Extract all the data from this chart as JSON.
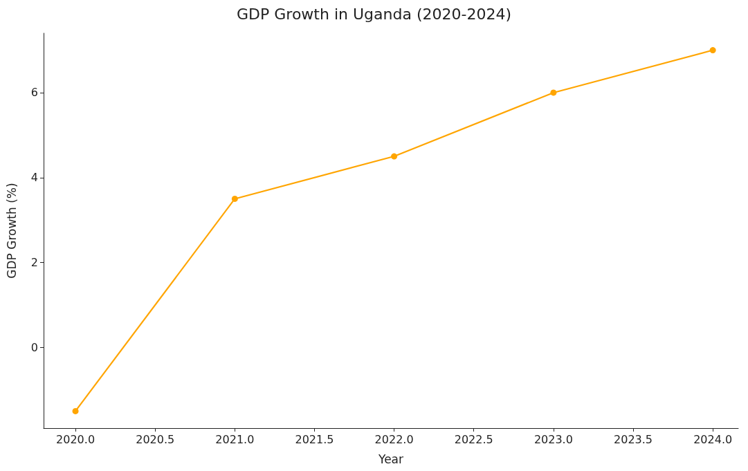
{
  "chart_data": {
    "type": "line",
    "title": "GDP Growth in Uganda (2020-2024)",
    "xlabel": "Year",
    "ylabel": "GDP Growth (%)",
    "x": [
      2020,
      2021,
      2022,
      2023,
      2024
    ],
    "series": [
      {
        "color": "#ffa500",
        "values": [
          -1.5,
          3.5,
          4.5,
          6,
          7
        ]
      }
    ],
    "xlim": [
      2019.8,
      2024.16
    ],
    "xticks": [
      {
        "value": 2020,
        "label": "2020.0"
      },
      {
        "value": 2020.5,
        "label": "2020.5"
      },
      {
        "value": 2021,
        "label": "2021.0"
      },
      {
        "value": 2021.5,
        "label": "2021.5"
      },
      {
        "value": 2022,
        "label": "2022.0"
      },
      {
        "value": 2022.5,
        "label": "2022.5"
      },
      {
        "value": 2023,
        "label": "2023.0"
      },
      {
        "value": 2023.5,
        "label": "2023.5"
      },
      {
        "value": 2024,
        "label": "2024.0"
      }
    ],
    "ylim": [
      -1.9,
      7.4
    ],
    "yticks": [
      0,
      2,
      4,
      6
    ],
    "marker": "circle",
    "line_style": "solid"
  }
}
